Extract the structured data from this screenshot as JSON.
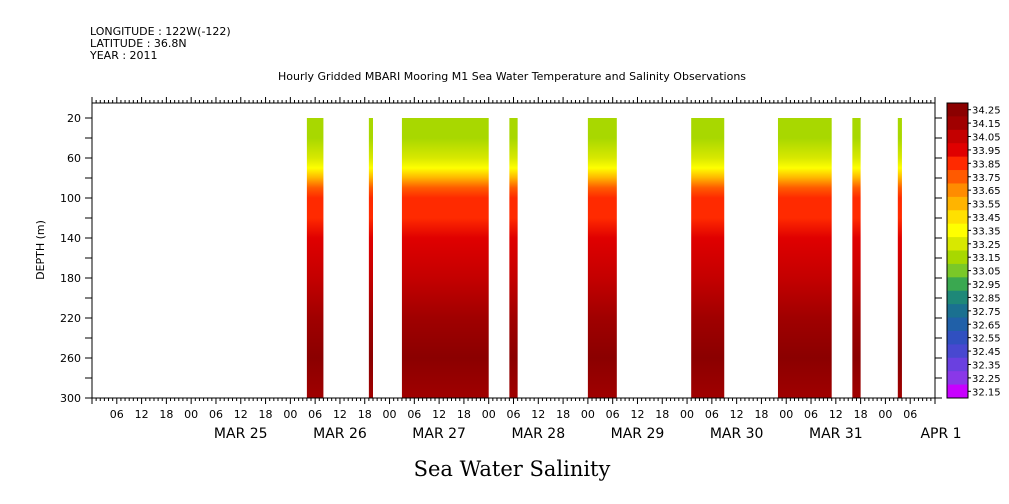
{
  "header": {
    "longitude": "LONGITUDE : 122W(-122)",
    "latitude": "LATITUDE : 36.8N",
    "year": "YEAR : 2011"
  },
  "chart_data": {
    "type": "heatmap",
    "title": "Hourly Gridded MBARI Mooring M1 Sea Water Temperature and Salinity Observations",
    "bottom_title": "Sea Water Salinity",
    "xlabel": "",
    "ylabel": "DEPTH (m)",
    "x_range_days": [
      "MAR 24 00:00",
      "APR 1 12:00"
    ],
    "hour_tick_labels": [
      "06",
      "12",
      "18",
      "00",
      "06",
      "12",
      "18",
      "00",
      "06",
      "12",
      "18",
      "00",
      "06",
      "12",
      "18",
      "00",
      "06",
      "12",
      "18",
      "00",
      "06",
      "12",
      "18",
      "00",
      "06",
      "12",
      "18",
      "00",
      "06",
      "12",
      "18",
      "00",
      "06"
    ],
    "date_labels": [
      "MAR 25",
      "MAR 26",
      "MAR 27",
      "MAR 28",
      "MAR 29",
      "MAR 30",
      "MAR 31",
      "APR 1"
    ],
    "y_ticks": [
      20,
      60,
      100,
      140,
      180,
      220,
      260,
      300
    ],
    "ylim": [
      300,
      5
    ],
    "y_inverted": true,
    "colorbar": {
      "levels": [
        "34.25",
        "34.15",
        "34.05",
        "33.95",
        "33.85",
        "33.75",
        "33.65",
        "33.55",
        "33.45",
        "33.35",
        "33.25",
        "33.15",
        "33.05",
        "32.95",
        "32.85",
        "32.75",
        "32.65",
        "32.55",
        "32.45",
        "32.35",
        "32.25",
        "32.15"
      ],
      "colors": [
        "#8b0000",
        "#a00000",
        "#c40000",
        "#e00000",
        "#ff2a00",
        "#ff5a00",
        "#ff8c00",
        "#ffb400",
        "#ffe000",
        "#ffff00",
        "#d8e800",
        "#a8d800",
        "#7ac828",
        "#3aa850",
        "#1e8878",
        "#1a7090",
        "#2060a8",
        "#3050c0",
        "#4848d0",
        "#6a40e0",
        "#8a38e8",
        "#c800ff"
      ]
    },
    "data_segments": [
      {
        "start": "MAR 26 04:00",
        "end": "MAR 26 08:00"
      },
      {
        "start": "MAR 26 19:00",
        "end": "MAR 26 20:00"
      },
      {
        "start": "MAR 27 03:00",
        "end": "MAR 28 00:00"
      },
      {
        "start": "MAR 28 05:00",
        "end": "MAR 28 07:00"
      },
      {
        "start": "MAR 29 00:00",
        "end": "MAR 29 07:00"
      },
      {
        "start": "MAR 30 01:00",
        "end": "MAR 30 09:00"
      },
      {
        "start": "MAR 30 22:00",
        "end": "MAR 31 11:00"
      },
      {
        "start": "MAR 31 16:00",
        "end": "MAR 31 18:00"
      },
      {
        "start": "APR 1 03:00",
        "end": "APR 1 04:00"
      }
    ],
    "salinity_profile": [
      {
        "depth": 20,
        "value": 33.1
      },
      {
        "depth": 40,
        "value": 33.15
      },
      {
        "depth": 60,
        "value": 33.2
      },
      {
        "depth": 70,
        "value": 33.35
      },
      {
        "depth": 80,
        "value": 33.55
      },
      {
        "depth": 90,
        "value": 33.75
      },
      {
        "depth": 100,
        "value": 33.85
      },
      {
        "depth": 120,
        "value": 33.9
      },
      {
        "depth": 140,
        "value": 33.95
      },
      {
        "depth": 180,
        "value": 34.0
      },
      {
        "depth": 220,
        "value": 34.1
      },
      {
        "depth": 260,
        "value": 34.2
      },
      {
        "depth": 300,
        "value": 34.15
      }
    ]
  }
}
